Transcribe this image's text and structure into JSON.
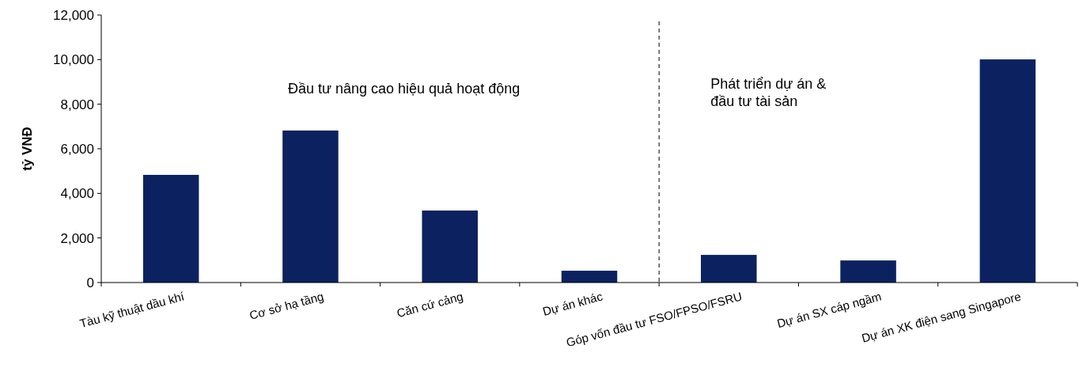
{
  "chart_data": {
    "type": "bar",
    "ylabel": "tỷ VNĐ",
    "categories": [
      "Tàu kỹ thuật dầu khí",
      "Cơ sở hạ tầng",
      "Căn cứ cảng",
      "Dự án khác",
      "Góp vốn đầu tư FSO/FPSO/FSRU",
      "Dự án SX cáp ngầm",
      "Dự án XK điện sang Singapore"
    ],
    "values": [
      4830,
      6820,
      3230,
      530,
      1240,
      990,
      10010
    ],
    "color": "#0c2260",
    "ylim": [
      0,
      12000
    ],
    "yticks": [
      0,
      {
        "value": 2000,
        "label": "2,000"
      },
      {
        "value": 4000,
        "label": "4,000"
      },
      {
        "value": 6000,
        "label": "6,000"
      },
      {
        "value": 8000,
        "label": "8,000"
      },
      {
        "value": 10000,
        "label": "10,000"
      },
      {
        "value": 12000,
        "label": "12,000"
      }
    ],
    "annotations": [
      "Đầu tư nâng cao hiệu quả hoạt động",
      "Phát triển dự án &\nđầu tư tài sản"
    ]
  }
}
